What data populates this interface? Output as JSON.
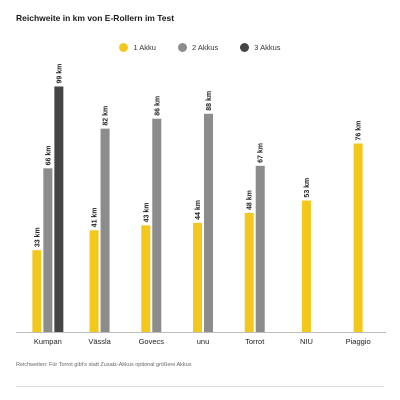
{
  "colors": {
    "1_akku": "#f2c81d",
    "2_akkus": "#8c8c8c",
    "3_akkus": "#454545",
    "axis": "#bdbdbd"
  },
  "chart_data": {
    "type": "bar",
    "title": "Reichweite in km von E-Rollern im Test",
    "xlabel": "",
    "ylabel": "",
    "ylim": [
      0,
      100
    ],
    "grid": false,
    "legend_position": "top-center",
    "value_suffix": " km",
    "categories": [
      "Kumpan",
      "Vässla",
      "Govecs",
      "unu",
      "Torrot",
      "NIU",
      "Piaggio"
    ],
    "series": [
      {
        "name": "1 Akku",
        "color": "#f2c81d",
        "values": [
          33,
          41,
          43,
          44,
          48,
          53,
          76
        ]
      },
      {
        "name": "2 Akkus",
        "color": "#8c8c8c",
        "values": [
          66,
          82,
          86,
          88,
          67,
          null,
          null
        ]
      },
      {
        "name": "3 Akkus",
        "color": "#454545",
        "values": [
          99,
          null,
          null,
          null,
          null,
          null,
          null
        ]
      }
    ]
  },
  "footnote": "Reichweiten: Für Torrot gibt's statt Zusatz-Akkus optional größere Akkus"
}
